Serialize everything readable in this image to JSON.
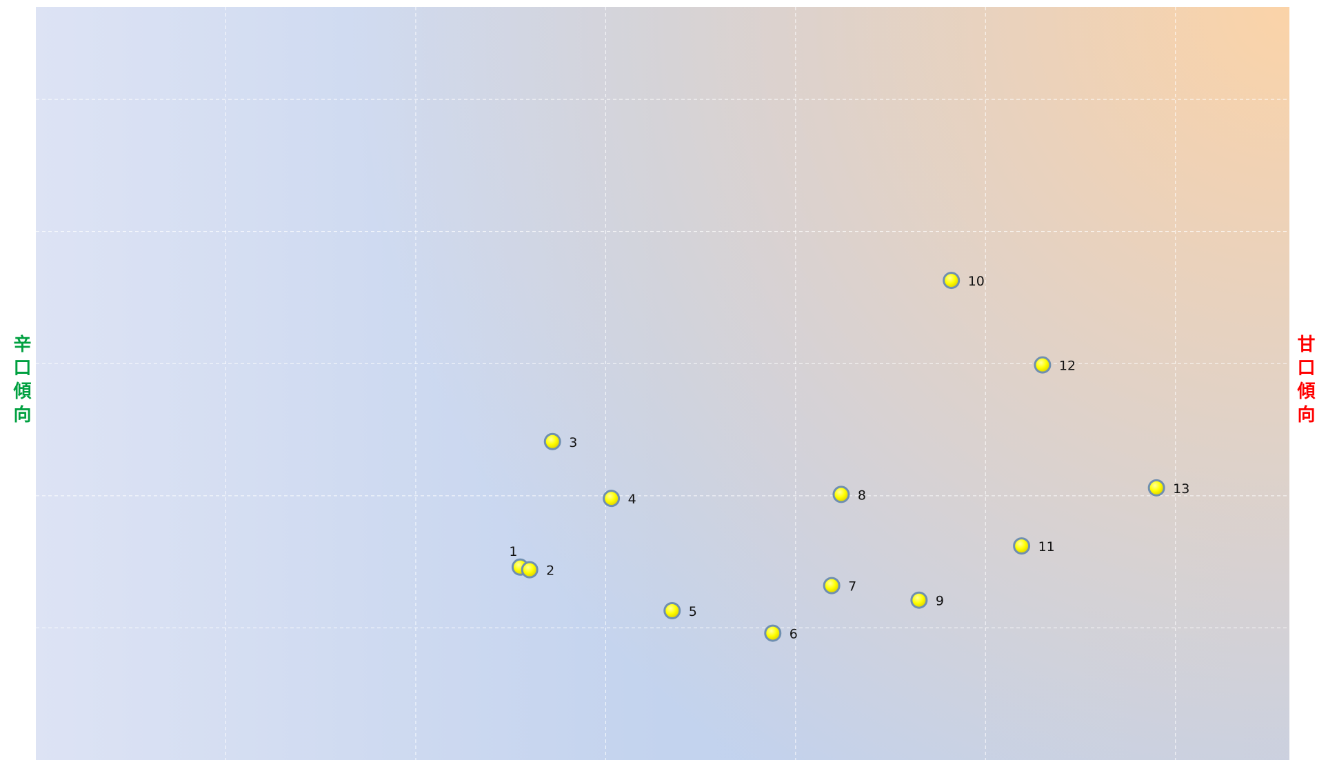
{
  "chart_data": {
    "type": "scatter",
    "labels": [
      "1",
      "2",
      "3",
      "4",
      "5",
      "6",
      "7",
      "8",
      "9",
      "10",
      "11",
      "12",
      "13"
    ],
    "x": [
      2.55,
      2.6,
      2.72,
      3.03,
      3.35,
      3.88,
      4.19,
      4.24,
      4.65,
      4.82,
      5.19,
      5.3,
      5.9
    ],
    "y": [
      1.46,
      1.44,
      2.41,
      1.98,
      1.13,
      0.96,
      1.32,
      2.01,
      1.21,
      3.63,
      1.62,
      2.99,
      2.06
    ],
    "color": "#ffff00",
    "xlim": [
      0,
      6.6
    ],
    "ylim": [
      0,
      5.7
    ],
    "xticks": [
      1,
      2,
      3,
      4,
      5,
      6
    ],
    "yticks": [
      1,
      2,
      3,
      4,
      5
    ],
    "grid": true,
    "left_label": "辛口傾向",
    "left_label_color": "#00a040",
    "right_label": "甘口傾向",
    "right_label_color": "#ff0000"
  }
}
